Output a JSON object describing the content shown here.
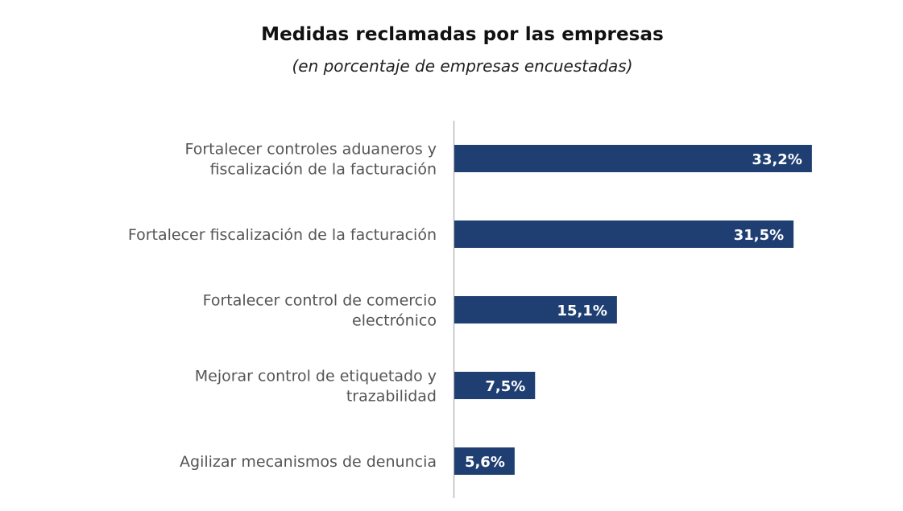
{
  "title": "Medidas reclamadas por las empresas",
  "subtitle": "(en porcentaje de empresas encuestadas)",
  "colors": {
    "bar": "#1f3f73",
    "axis": "#bbbbbb",
    "label": "#555555",
    "value_text": "#ffffff"
  },
  "chart_data": {
    "type": "bar",
    "orientation": "horizontal",
    "title": "Medidas reclamadas por las empresas",
    "subtitle": "(en porcentaje de empresas encuestadas)",
    "categories": [
      [
        "Fortalecer controles aduaneros y",
        "fiscalización de la facturación"
      ],
      [
        "Fortalecer fiscalización de la facturación"
      ],
      [
        "Fortalecer control de comercio",
        "electrónico"
      ],
      [
        "Mejorar control de etiquetado y",
        "trazabilidad"
      ],
      [
        "Agilizar mecanismos de denuncia"
      ]
    ],
    "values": [
      33.2,
      31.5,
      15.1,
      7.5,
      5.6
    ],
    "value_labels": [
      "33,2%",
      "31,5%",
      "15,1%",
      "7,5%",
      "5,6%"
    ],
    "unit": "%",
    "xlim": [
      0,
      35
    ],
    "grid": false,
    "legend": "none"
  }
}
